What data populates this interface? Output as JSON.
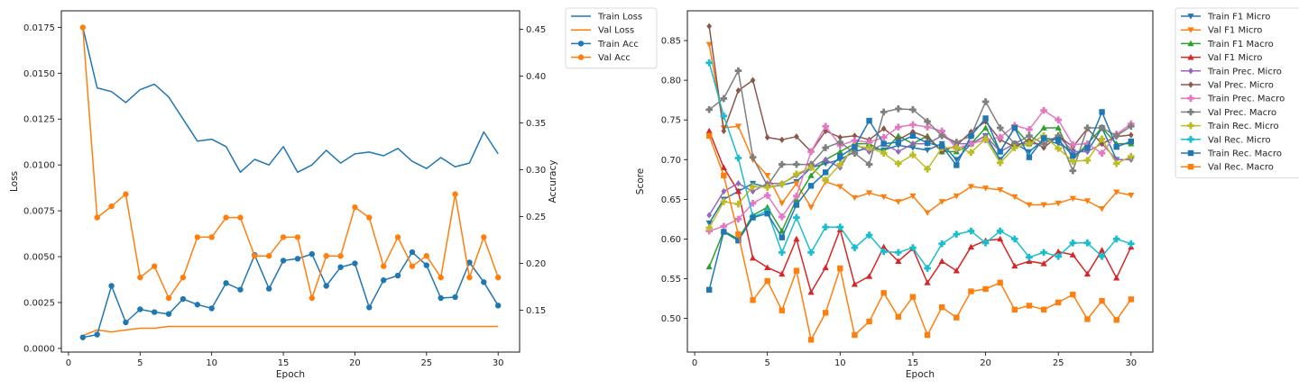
{
  "chart_data": [
    {
      "type": "line",
      "xlabel": "Epoch",
      "ylabel": "Loss",
      "y2label": "Accuracy",
      "xlim": [
        -0.5,
        31.5
      ],
      "ylim": [
        -0.0002,
        0.0184
      ],
      "y2lim": [
        0.1053,
        0.4698
      ],
      "xticks": [
        0,
        5,
        10,
        15,
        20,
        25,
        30
      ],
      "yticks": [
        "0.0000",
        "0.0025",
        "0.0050",
        "0.0075",
        "0.0100",
        "0.0125",
        "0.0150",
        "0.0175"
      ],
      "y2ticks": [
        "0.15",
        "0.20",
        "0.25",
        "0.30",
        "0.35",
        "0.40",
        "0.45"
      ],
      "legend_position": "outside-top-right",
      "x": [
        1,
        2,
        3,
        4,
        5,
        6,
        7,
        8,
        9,
        10,
        11,
        12,
        13,
        14,
        15,
        16,
        17,
        18,
        19,
        20,
        21,
        22,
        23,
        24,
        25,
        26,
        27,
        28,
        29,
        30
      ],
      "series": [
        {
          "name": "Train Loss",
          "axis": "left",
          "color": "#1f77b4",
          "marker": "none",
          "values": [
            0.0175,
            0.0142,
            0.014,
            0.0134,
            0.0141,
            0.0144,
            0.0137,
            0.0125,
            0.0113,
            0.0114,
            0.011,
            0.0096,
            0.0103,
            0.01,
            0.011,
            0.0096,
            0.01,
            0.0108,
            0.0101,
            0.0106,
            0.0107,
            0.0105,
            0.0109,
            0.0102,
            0.0098,
            0.0104,
            0.0099,
            0.0101,
            0.0118,
            0.0106
          ]
        },
        {
          "name": "Val Loss",
          "axis": "left",
          "color": "#ff7f0e",
          "marker": "none",
          "values": [
            0.0007,
            0.001,
            0.0009,
            0.001,
            0.0011,
            0.0011,
            0.0012,
            0.0012,
            0.0012,
            0.0012,
            0.0012,
            0.0012,
            0.0012,
            0.0012,
            0.0012,
            0.0012,
            0.0012,
            0.0012,
            0.0012,
            0.0012,
            0.0012,
            0.0012,
            0.0012,
            0.0012,
            0.0012,
            0.0012,
            0.0012,
            0.0012,
            0.0012,
            0.0012
          ]
        },
        {
          "name": "Train Acc",
          "axis": "right",
          "color": "#1f77b4",
          "marker": "circle",
          "values": [
            0.121,
            0.124,
            0.176,
            0.137,
            0.151,
            0.148,
            0.146,
            0.162,
            0.156,
            0.152,
            0.179,
            0.172,
            0.209,
            0.173,
            0.203,
            0.205,
            0.21,
            0.176,
            0.196,
            0.2,
            0.153,
            0.182,
            0.187,
            0.212,
            0.198,
            0.163,
            0.164,
            0.201,
            0.18,
            0.155
          ]
        },
        {
          "name": "Val Acc",
          "axis": "right",
          "color": "#ff7f0e",
          "marker": "circle",
          "values": [
            0.452,
            0.249,
            0.261,
            0.274,
            0.185,
            0.197,
            0.163,
            0.185,
            0.228,
            0.228,
            0.249,
            0.249,
            0.208,
            0.208,
            0.228,
            0.228,
            0.163,
            0.208,
            0.208,
            0.26,
            0.249,
            0.197,
            0.228,
            0.197,
            0.208,
            0.185,
            0.274,
            0.185,
            0.228,
            0.185
          ]
        }
      ]
    },
    {
      "type": "line",
      "xlabel": "Epoch",
      "ylabel": "Score",
      "xlim": [
        -0.5,
        31.5
      ],
      "ylim": [
        0.4575,
        0.8875
      ],
      "xticks": [
        0,
        5,
        10,
        15,
        20,
        25,
        30
      ],
      "yticks": [
        "0.50",
        "0.55",
        "0.60",
        "0.65",
        "0.70",
        "0.75",
        "0.80",
        "0.85"
      ],
      "legend_position": "outside-top-right",
      "x": [
        1,
        2,
        3,
        4,
        5,
        6,
        7,
        8,
        9,
        10,
        11,
        12,
        13,
        14,
        15,
        16,
        17,
        18,
        19,
        20,
        21,
        22,
        23,
        24,
        25,
        26,
        27,
        28,
        29,
        30
      ],
      "series": [
        {
          "name": "Train F1 Micro",
          "color": "#1f77b4",
          "marker": "tri_down",
          "values": [
            0.62,
            0.65,
            0.66,
            0.67,
            0.665,
            0.668,
            0.672,
            0.69,
            0.695,
            0.7,
            0.71,
            0.715,
            0.712,
            0.718,
            0.715,
            0.712,
            0.72,
            0.7,
            0.72,
            0.73,
            0.7,
            0.72,
            0.71,
            0.725,
            0.72,
            0.71,
            0.71,
            0.74,
            0.7,
            0.7
          ]
        },
        {
          "name": "Val F1 Micro",
          "color": "#ff7f0e",
          "marker": "tri_down",
          "values": [
            0.845,
            0.74,
            0.742,
            0.7,
            0.68,
            0.645,
            0.67,
            0.64,
            0.672,
            0.666,
            0.652,
            0.658,
            0.653,
            0.647,
            0.654,
            0.633,
            0.647,
            0.654,
            0.666,
            0.664,
            0.662,
            0.653,
            0.643,
            0.643,
            0.645,
            0.651,
            0.648,
            0.638,
            0.659,
            0.655
          ]
        },
        {
          "name": "Train F1 Macro",
          "color": "#2ca02c",
          "marker": "tri_up",
          "values": [
            0.565,
            0.61,
            0.6,
            0.63,
            0.64,
            0.61,
            0.65,
            0.68,
            0.7,
            0.71,
            0.72,
            0.72,
            0.71,
            0.73,
            0.72,
            0.73,
            0.71,
            0.71,
            0.72,
            0.74,
            0.71,
            0.74,
            0.72,
            0.74,
            0.74,
            0.7,
            0.72,
            0.74,
            0.72,
            0.72
          ]
        },
        {
          "name": "Val F1 Micro",
          "color": "#d62728",
          "marker": "tri_up",
          "values": [
            0.736,
            0.69,
            0.66,
            0.576,
            0.564,
            0.556,
            0.6,
            0.533,
            0.564,
            0.612,
            0.543,
            0.553,
            0.59,
            0.572,
            0.588,
            0.545,
            0.572,
            0.56,
            0.59,
            0.598,
            0.6,
            0.566,
            0.572,
            0.569,
            0.584,
            0.58,
            0.556,
            0.586,
            0.551,
            0.59
          ]
        },
        {
          "name": "Train Prec. Micro",
          "color": "#9467bd",
          "marker": "diamond",
          "values": [
            0.63,
            0.66,
            0.67,
            0.66,
            0.67,
            0.67,
            0.68,
            0.69,
            0.7,
            0.69,
            0.72,
            0.71,
            0.72,
            0.71,
            0.72,
            0.72,
            0.73,
            0.72,
            0.72,
            0.73,
            0.71,
            0.72,
            0.72,
            0.72,
            0.73,
            0.71,
            0.71,
            0.72,
            0.7,
            0.7
          ]
        },
        {
          "name": "Val Prec. Micro",
          "color": "#8c564b",
          "marker": "diamond",
          "values": [
            0.868,
            0.736,
            0.787,
            0.8,
            0.728,
            0.725,
            0.729,
            0.71,
            0.736,
            0.728,
            0.73,
            0.725,
            0.739,
            0.725,
            0.735,
            0.728,
            0.71,
            0.718,
            0.735,
            0.748,
            0.725,
            0.716,
            0.725,
            0.715,
            0.73,
            0.716,
            0.739,
            0.72,
            0.729,
            0.731
          ]
        },
        {
          "name": "Train Prec. Macro",
          "color": "#e377c2",
          "marker": "plus",
          "values": [
            0.61,
            0.616,
            0.625,
            0.645,
            0.655,
            0.628,
            0.654,
            0.71,
            0.742,
            0.718,
            0.724,
            0.722,
            0.728,
            0.741,
            0.744,
            0.741,
            0.736,
            0.714,
            0.72,
            0.725,
            0.728,
            0.743,
            0.738,
            0.762,
            0.75,
            0.719,
            0.72,
            0.708,
            0.732,
            0.745
          ]
        },
        {
          "name": "Val Prec. Macro",
          "color": "#7f7f7f",
          "marker": "plus",
          "values": [
            0.763,
            0.777,
            0.812,
            0.703,
            0.667,
            0.694,
            0.694,
            0.694,
            0.715,
            0.722,
            0.708,
            0.694,
            0.76,
            0.764,
            0.763,
            0.748,
            0.73,
            0.722,
            0.73,
            0.773,
            0.74,
            0.72,
            0.73,
            0.72,
            0.73,
            0.686,
            0.74,
            0.74,
            0.73,
            0.742
          ]
        },
        {
          "name": "Train Rec. Micro",
          "color": "#bcbd22",
          "marker": "plus",
          "values": [
            0.614,
            0.647,
            0.644,
            0.666,
            0.665,
            0.669,
            0.682,
            0.69,
            0.674,
            0.694,
            0.717,
            0.715,
            0.708,
            0.695,
            0.706,
            0.688,
            0.715,
            0.715,
            0.709,
            0.726,
            0.696,
            0.715,
            0.72,
            0.73,
            0.714,
            0.698,
            0.699,
            0.726,
            0.695,
            0.704
          ]
        },
        {
          "name": "Val Rec. Micro",
          "color": "#17becf",
          "marker": "plus",
          "values": [
            0.822,
            0.755,
            0.702,
            0.628,
            0.635,
            0.583,
            0.627,
            0.583,
            0.615,
            0.615,
            0.589,
            0.605,
            0.584,
            0.583,
            0.589,
            0.563,
            0.594,
            0.606,
            0.61,
            0.595,
            0.61,
            0.6,
            0.577,
            0.583,
            0.578,
            0.595,
            0.595,
            0.578,
            0.6,
            0.594
          ]
        },
        {
          "name": "Train Rec. Macro",
          "color": "#1f77b4",
          "marker": "square",
          "values": [
            0.536,
            0.609,
            0.598,
            0.627,
            0.632,
            0.602,
            0.643,
            0.667,
            0.684,
            0.704,
            0.716,
            0.749,
            0.72,
            0.722,
            0.73,
            0.721,
            0.717,
            0.693,
            0.73,
            0.752,
            0.71,
            0.74,
            0.703,
            0.727,
            0.725,
            0.705,
            0.715,
            0.76,
            0.716,
            0.723
          ]
        },
        {
          "name": "Val Rec. Macro",
          "color": "#ff7f0e",
          "marker": "square",
          "values": [
            0.73,
            0.68,
            0.606,
            0.523,
            0.547,
            0.51,
            0.56,
            0.473,
            0.507,
            0.563,
            0.479,
            0.496,
            0.532,
            0.502,
            0.527,
            0.479,
            0.514,
            0.501,
            0.534,
            0.537,
            0.545,
            0.511,
            0.516,
            0.511,
            0.52,
            0.53,
            0.499,
            0.522,
            0.498,
            0.524
          ]
        }
      ]
    }
  ]
}
